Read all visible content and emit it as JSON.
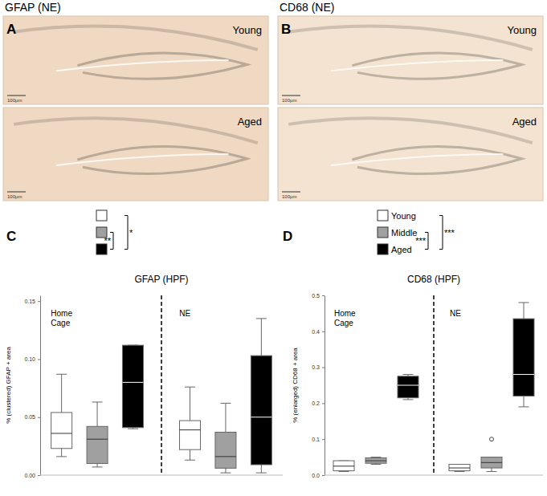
{
  "images": [
    {
      "panel_label": "A",
      "title": "GFAP (NE)",
      "frames": [
        "Young",
        "Aged"
      ],
      "scale_bar": "100μm",
      "color": "#efd9c2"
    },
    {
      "panel_label": "B",
      "title": "CD68 (NE)",
      "frames": [
        "Young",
        "Aged"
      ],
      "scale_bar": "100μm",
      "color": "#f3e3d0"
    }
  ],
  "chart_data": [
    {
      "type": "box",
      "panel_label": "C",
      "title": "GFAP (HPF)",
      "y_label": "% (clustered) GFAP + area",
      "categories": [
        "Home Cage",
        "NE"
      ],
      "series": [
        {
          "color": "#ffffff",
          "values": [
            {
              "min": 0.016,
              "q1": 0.023,
              "median": 0.036,
              "q3": 0.054,
              "max": 0.087
            },
            {
              "min": 0.013,
              "q1": 0.022,
              "median": 0.039,
              "q3": 0.047,
              "max": 0.076
            }
          ]
        },
        {
          "color": "#a0a0a0",
          "values": [
            {
              "min": 0.007,
              "q1": 0.01,
              "median": 0.031,
              "q3": 0.042,
              "max": 0.063
            },
            {
              "min": 0.002,
              "q1": 0.006,
              "median": 0.016,
              "q3": 0.037,
              "max": 0.062
            }
          ]
        },
        {
          "color": "#000000",
          "values": [
            {
              "min": 0.04,
              "q1": 0.041,
              "median": 0.08,
              "q3": 0.112,
              "max": 0.112
            },
            {
              "min": 0.002,
              "q1": 0.009,
              "median": 0.05,
              "q3": 0.103,
              "max": 0.135
            }
          ]
        }
      ],
      "significance": [
        {
          "from": 1,
          "to": 2,
          "label": "**"
        },
        {
          "from": 0,
          "to": 2,
          "label": "*"
        }
      ],
      "ylim": [
        0,
        0.155
      ],
      "yticks": [
        {
          "value": 0,
          "label": "0.00"
        },
        {
          "value": 0.05,
          "label": "0.05"
        },
        {
          "value": 0.1,
          "label": "0.10"
        },
        {
          "value": 0.15,
          "label": "0.15"
        }
      ],
      "legend": "top",
      "tick_labels": "y",
      "grid": false
    },
    {
      "type": "box",
      "panel_label": "D",
      "title": "CD68 (HPF)",
      "y_label": "% (enlarged) CD68 + area",
      "categories": [
        "Home Cage",
        "NE"
      ],
      "series": [
        {
          "name": "Young",
          "color": "#ffffff",
          "values": [
            {
              "min": 0.01,
              "q1": 0.012,
              "median": 0.025,
              "q3": 0.04,
              "max": 0.04
            },
            {
              "min": 0.01,
              "q1": 0.012,
              "median": 0.02,
              "q3": 0.03,
              "max": 0.03
            }
          ]
        },
        {
          "name": "Middle",
          "color": "#a0a0a0",
          "values": [
            {
              "min": 0.03,
              "q1": 0.033,
              "median": 0.04,
              "q3": 0.048,
              "max": 0.05
            },
            {
              "min": 0.01,
              "q1": 0.02,
              "median": 0.035,
              "q3": 0.05,
              "max": 0.05,
              "outliers": [
                0.1
              ]
            }
          ]
        },
        {
          "name": "Aged",
          "color": "#000000",
          "values": [
            {
              "min": 0.21,
              "q1": 0.215,
              "median": 0.25,
              "q3": 0.275,
              "max": 0.28
            },
            {
              "min": 0.19,
              "q1": 0.22,
              "median": 0.28,
              "q3": 0.435,
              "max": 0.48
            }
          ]
        }
      ],
      "significance": [
        {
          "from": 1,
          "to": 2,
          "label": "***"
        },
        {
          "from": 0,
          "to": 2,
          "label": "***"
        }
      ],
      "ylim": [
        0,
        0.5
      ],
      "yticks": [
        {
          "value": 0,
          "label": "0.0"
        },
        {
          "value": 0.1,
          "label": "0.1"
        },
        {
          "value": 0.2,
          "label": "0.2"
        },
        {
          "value": 0.3,
          "label": "0.3"
        },
        {
          "value": 0.4,
          "label": "0.4"
        },
        {
          "value": 0.5,
          "label": "0.5"
        }
      ],
      "legend": "top",
      "tick_labels": "y",
      "grid": false
    }
  ]
}
